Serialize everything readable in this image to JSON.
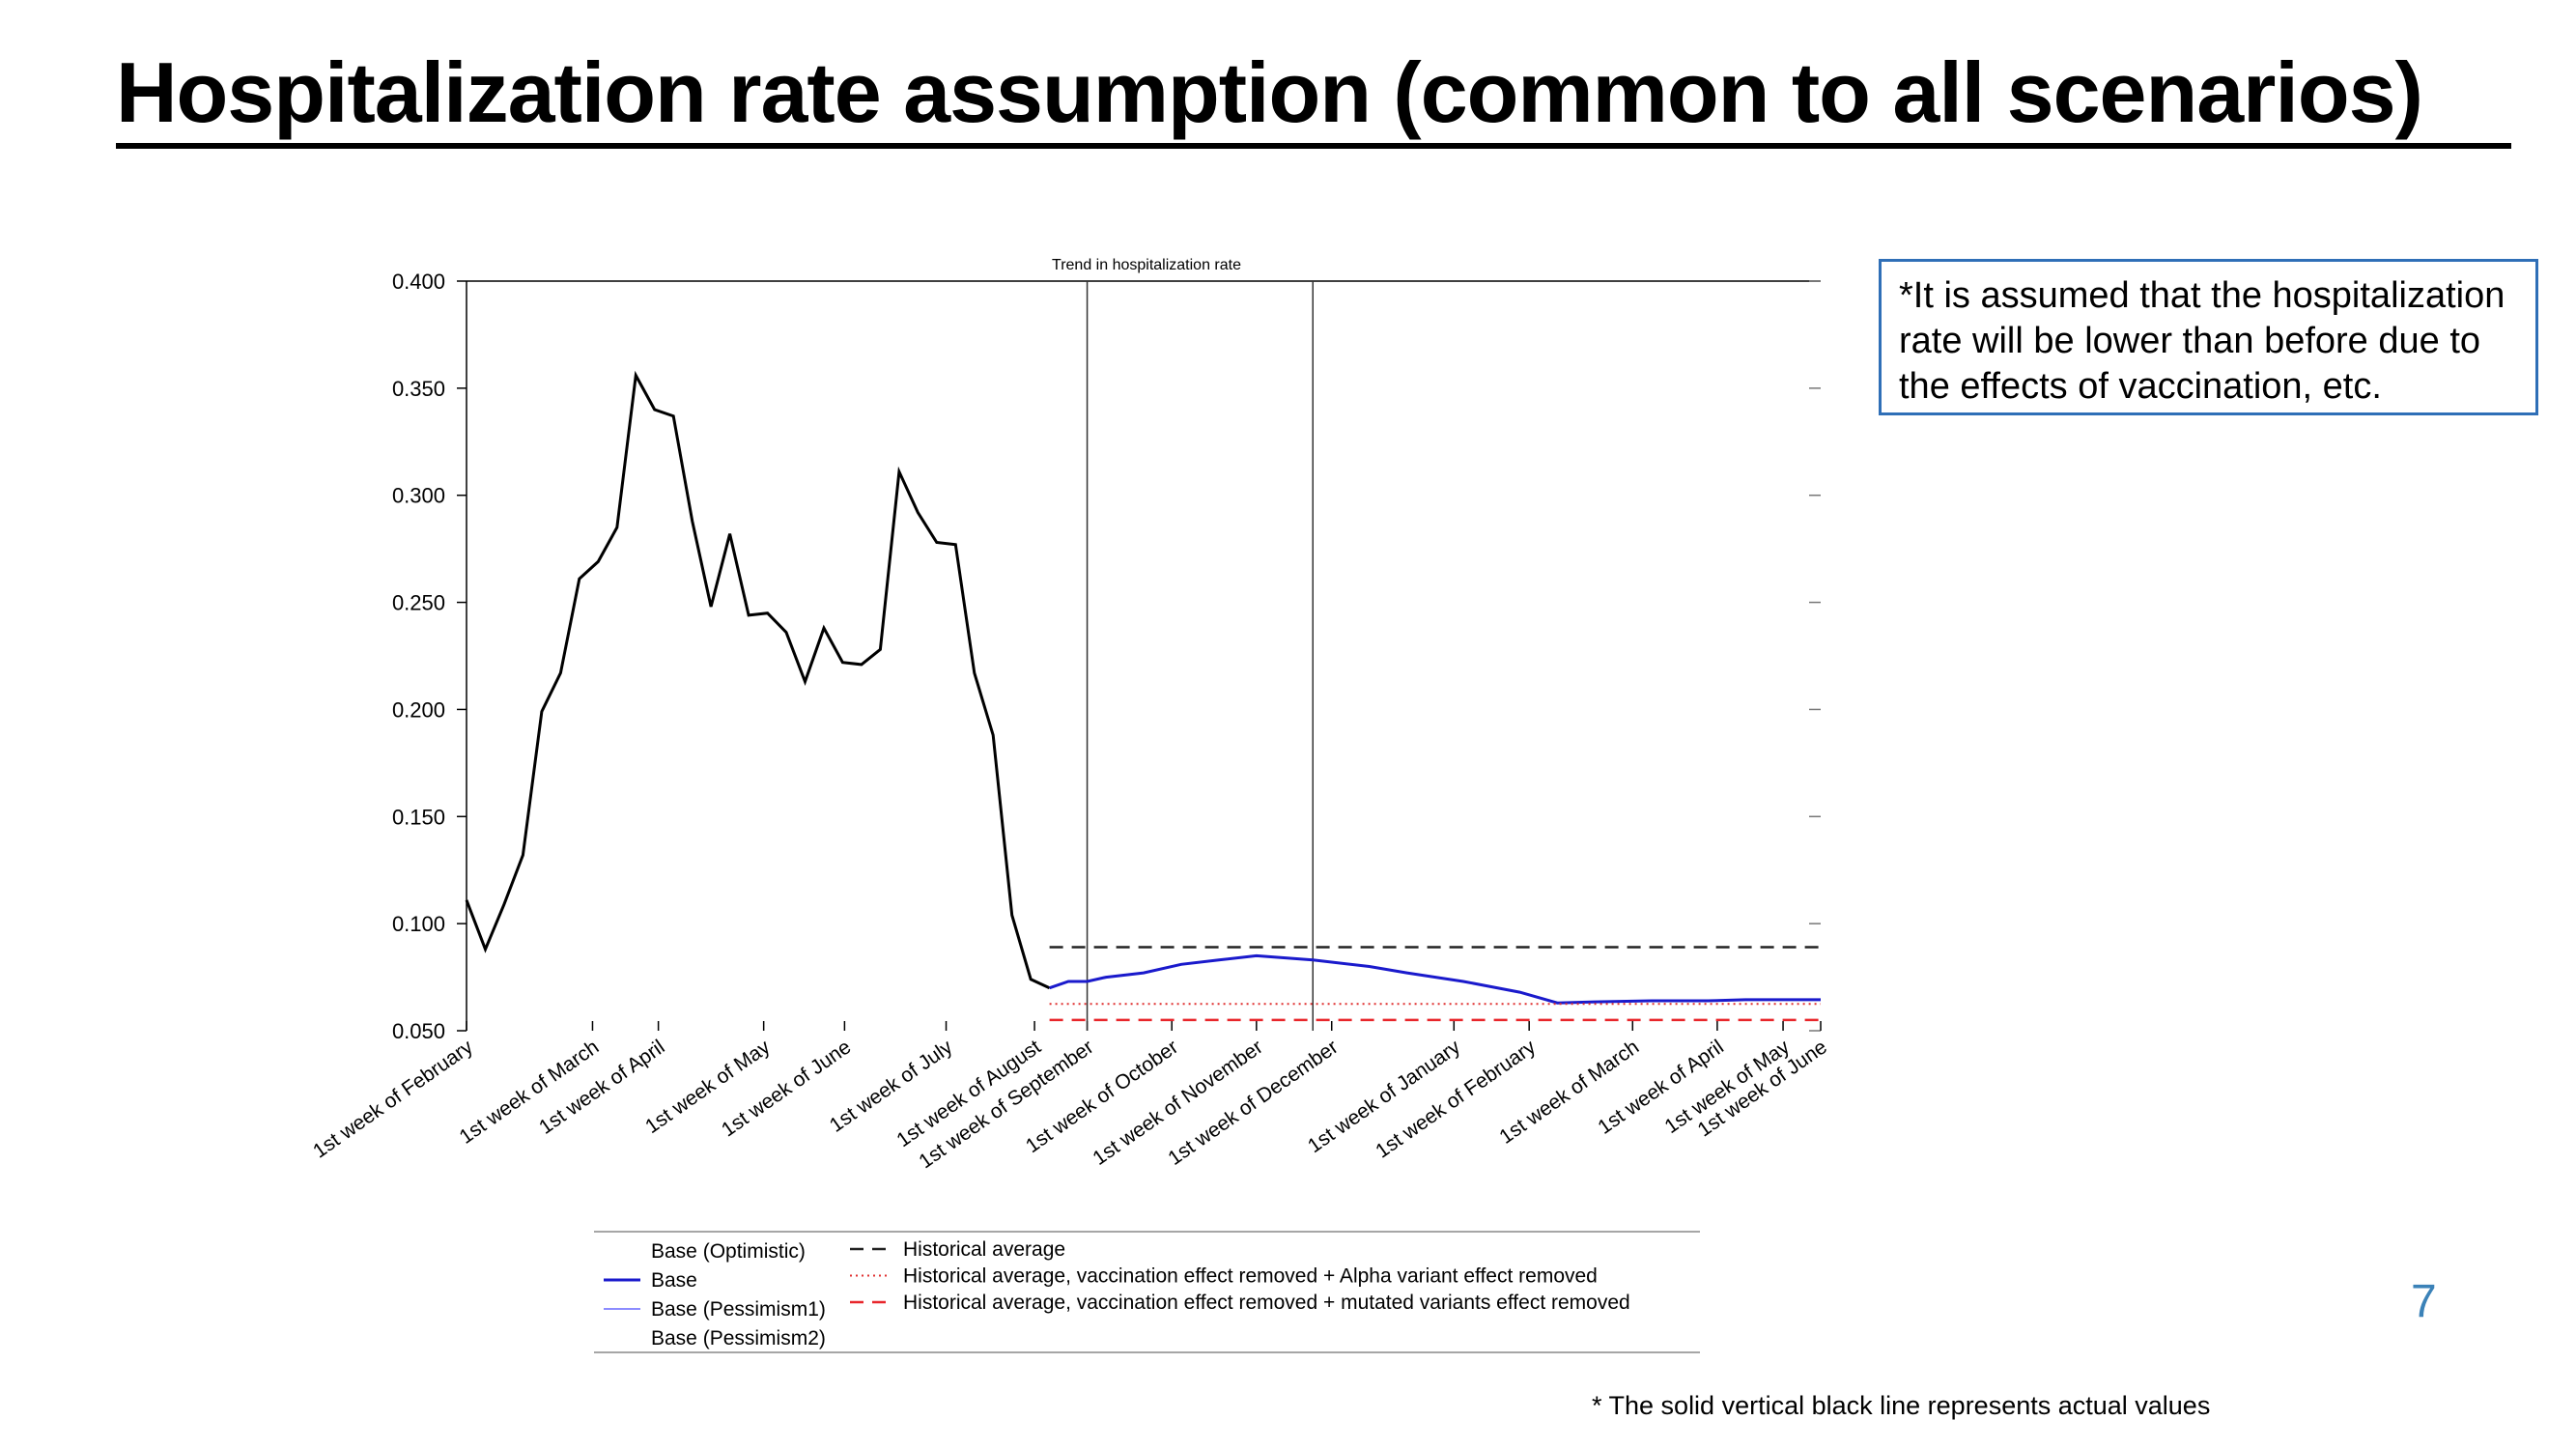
{
  "slide": {
    "title": "Hospitalization rate assumption (common to all scenarios)",
    "note": "*It is assumed that the hospitalization rate will be lower than before due to the effects of vaccination, etc.",
    "page_number": "7",
    "footnote": "* The solid vertical black line represents actual values"
  },
  "colors": {
    "actual": "#000000",
    "base": "#1a1acc",
    "base_pessimism1": "#6666ff",
    "historical_average": "#222222",
    "alpha_removed": "#e03030",
    "mutated_removed": "#e8262b",
    "note_border": "#2f6fb7",
    "page_number": "#3b82b8"
  },
  "chart_data": {
    "type": "line",
    "title": "Trend in hospitalization rate",
    "xlabel": "",
    "ylabel": "",
    "ylim": [
      0.05,
      0.4
    ],
    "yticks": [
      "0.050",
      "0.100",
      "0.150",
      "0.200",
      "0.250",
      "0.300",
      "0.350",
      "0.400"
    ],
    "ytick_values": [
      0.05,
      0.1,
      0.15,
      0.2,
      0.25,
      0.3,
      0.35,
      0.4
    ],
    "xlim": [
      0,
      72
    ],
    "categories": [
      "1st week of February",
      "1st week of March",
      "1st week of April",
      "1st week of May",
      "1st week of June",
      "1st week of July",
      "1st week of August",
      "1st week of September",
      "1st week of October",
      "1st week of November",
      "1st week of December",
      "1st week of January",
      "1st week of February",
      "1st week of March",
      "1st week of April",
      "1st week of May",
      "1st week of June"
    ],
    "category_positions": [
      0,
      6.7,
      10.2,
      15.8,
      20.1,
      25.5,
      30.2,
      33.0,
      37.5,
      42.0,
      46.0,
      52.5,
      56.5,
      62.0,
      66.5,
      70.0,
      72.0
    ],
    "vertical_lines_x": [
      33,
      45
    ],
    "grid": false,
    "legend_position": "bottom",
    "legend": {
      "left": [
        {
          "label": "Base (Optimistic)",
          "style": "none"
        },
        {
          "label": "Base",
          "style": "solid-base"
        },
        {
          "label": "Base (Pessimism1)",
          "style": "solid-thin"
        },
        {
          "label": "Base (Pessimism2)",
          "style": "none"
        }
      ],
      "right": [
        {
          "label": "Historical average",
          "style": "dashed-black"
        },
        {
          "label": "Historical average, vaccination effect removed + Alpha variant effect removed",
          "style": "dotted-red"
        },
        {
          "label": "Historical average, vaccination effect removed + mutated variants effect removed",
          "style": "dashed-red"
        }
      ]
    },
    "series": [
      {
        "name": "Actual",
        "style": "solid-black",
        "points": [
          [
            0,
            0.111
          ],
          [
            1,
            0.088
          ],
          [
            2,
            0.109
          ],
          [
            3,
            0.132
          ],
          [
            4,
            0.199
          ],
          [
            5,
            0.217
          ],
          [
            6,
            0.261
          ],
          [
            7,
            0.269
          ],
          [
            8,
            0.285
          ],
          [
            9,
            0.356
          ],
          [
            10,
            0.34
          ],
          [
            11,
            0.337
          ],
          [
            12,
            0.288
          ],
          [
            13,
            0.248
          ],
          [
            14,
            0.282
          ],
          [
            15,
            0.244
          ],
          [
            16,
            0.245
          ],
          [
            17,
            0.236
          ],
          [
            18,
            0.213
          ],
          [
            19,
            0.238
          ],
          [
            20,
            0.222
          ],
          [
            21,
            0.221
          ],
          [
            22,
            0.228
          ],
          [
            23,
            0.311
          ],
          [
            24,
            0.292
          ],
          [
            25,
            0.278
          ],
          [
            26,
            0.277
          ],
          [
            27,
            0.217
          ],
          [
            28,
            0.188
          ],
          [
            29,
            0.104
          ],
          [
            30,
            0.074
          ],
          [
            31,
            0.07
          ]
        ]
      },
      {
        "name": "Base",
        "style": "solid-base",
        "points": [
          [
            31,
            0.07
          ],
          [
            32,
            0.073
          ],
          [
            33,
            0.073
          ],
          [
            34,
            0.075
          ],
          [
            36,
            0.077
          ],
          [
            38,
            0.081
          ],
          [
            40,
            0.083
          ],
          [
            42,
            0.085
          ],
          [
            45,
            0.083
          ],
          [
            48,
            0.08
          ],
          [
            50,
            0.077
          ],
          [
            53,
            0.073
          ],
          [
            56,
            0.068
          ],
          [
            58,
            0.063
          ],
          [
            60,
            0.0635
          ],
          [
            63,
            0.064
          ],
          [
            66,
            0.064
          ],
          [
            68,
            0.0645
          ],
          [
            72,
            0.0645
          ]
        ]
      },
      {
        "name": "Historical average",
        "style": "dashed-black",
        "points": [
          [
            31,
            0.089
          ],
          [
            72,
            0.089
          ]
        ]
      },
      {
        "name": "Historical average, vaccination effect removed + Alpha variant effect removed",
        "style": "dotted-red",
        "points": [
          [
            31,
            0.0625
          ],
          [
            72,
            0.0625
          ]
        ]
      },
      {
        "name": "Historical average, vaccination effect removed + mutated variants effect removed",
        "style": "dashed-red",
        "points": [
          [
            31,
            0.055
          ],
          [
            72,
            0.055
          ]
        ]
      }
    ]
  }
}
